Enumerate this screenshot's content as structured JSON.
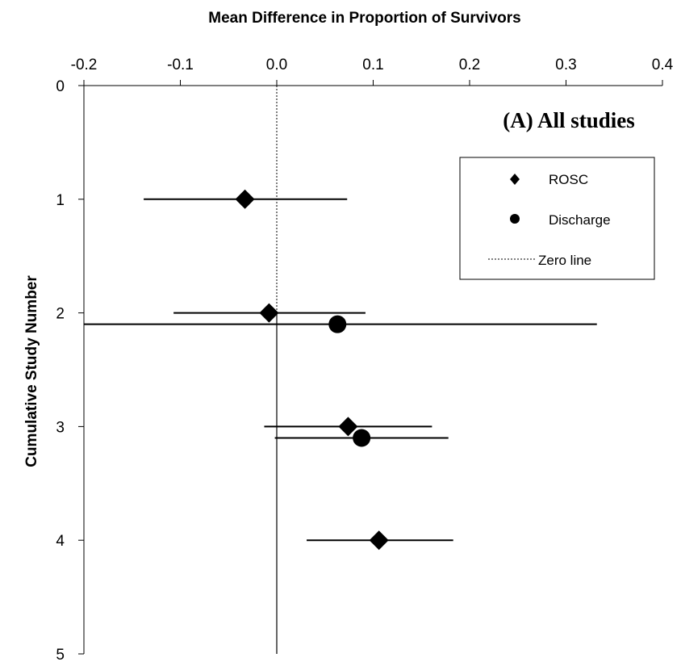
{
  "chart_data": {
    "type": "scatter",
    "subtype": "forest-plot-cumulative",
    "title": "Mean Difference in Proportion of Survivors",
    "xlabel": "Mean Difference in Proportion of Survivors",
    "ylabel": "Cumulative Study Number",
    "annotation": "(A) All studies",
    "xlim": [
      -0.2,
      0.4
    ],
    "ylim": [
      0,
      5
    ],
    "y_reversed": true,
    "x_axis_position": "top",
    "x_ticks": [
      "-0.2",
      "-0.1",
      "0.0",
      "0.1",
      "0.2",
      "0.3",
      "0.4"
    ],
    "x_tick_values": [
      -0.2,
      -0.1,
      0.0,
      0.1,
      0.2,
      0.3,
      0.4
    ],
    "y_ticks": [
      "0",
      "1",
      "2",
      "3",
      "4",
      "5"
    ],
    "y_tick_values": [
      0,
      1,
      2,
      3,
      4,
      5
    ],
    "grid": false,
    "legend_position": "top-right",
    "series": [
      {
        "name": "ROSC",
        "marker": "diamond",
        "color": "#000000",
        "points": [
          {
            "study": 1,
            "y": 1.0,
            "x": -0.033,
            "lo": -0.138,
            "hi": 0.073
          },
          {
            "study": 2,
            "y": 2.0,
            "x": -0.008,
            "lo": -0.107,
            "hi": 0.092
          },
          {
            "study": 3,
            "y": 3.0,
            "x": 0.074,
            "lo": -0.013,
            "hi": 0.161
          },
          {
            "study": 4,
            "y": 4.0,
            "x": 0.106,
            "lo": 0.031,
            "hi": 0.183
          }
        ]
      },
      {
        "name": "Discharge",
        "marker": "circle",
        "color": "#000000",
        "points": [
          {
            "study": 2,
            "y": 2.1,
            "x": 0.063,
            "lo": -0.2,
            "hi": 0.332
          },
          {
            "study": 3,
            "y": 3.1,
            "x": 0.088,
            "lo": -0.002,
            "hi": 0.178
          }
        ]
      }
    ],
    "reference_line": {
      "name": "Zero line",
      "x": 0.0,
      "style": "dotted"
    },
    "solid_reference_line": {
      "x": 0.0
    }
  }
}
